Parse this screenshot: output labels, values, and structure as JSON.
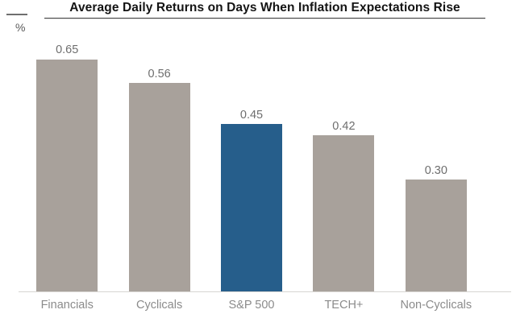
{
  "header": {
    "title": "Average Daily Returns on Days When Inflation Expectations Rise",
    "y_axis_unit": "%"
  },
  "chart_data": {
    "type": "bar",
    "title": "Average Daily Returns on Days When Inflation Expectations Rise",
    "ylabel": "%",
    "xlabel": "",
    "categories": [
      "Financials",
      "Cyclicals",
      "S&P 500",
      "TECH+",
      "Non-Cyclicals"
    ],
    "values": [
      0.65,
      0.56,
      0.45,
      0.42,
      0.3
    ],
    "value_labels": [
      "0.65",
      "0.56",
      "0.45",
      "0.42",
      "0.30"
    ],
    "ylim": [
      0,
      0.665
    ],
    "grid": false,
    "legend": "none",
    "highlight_index": 2,
    "colors": {
      "bar_default": "#a8a19b",
      "bar_highlight": "#265e8b",
      "title_text": "#141414",
      "value_text": "#6e6e6e",
      "category_text": "#8b8b8b",
      "axis_line": "#d7d5d2"
    }
  }
}
